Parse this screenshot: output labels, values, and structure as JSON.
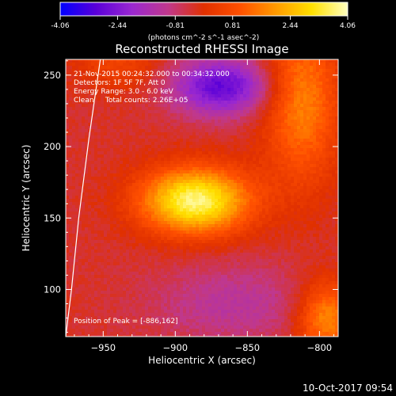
{
  "chart_data": {
    "type": "heatmap",
    "title": "Reconstructed RHESSI Image",
    "xlabel": "Heliocentric X (arcsec)",
    "ylabel": "Heliocentric Y (arcsec)",
    "xlim": [
      -976,
      -787
    ],
    "ylim": [
      67,
      261
    ],
    "xticks": [
      -950,
      -900,
      -850,
      -800
    ],
    "yticks": [
      100,
      150,
      200,
      250
    ],
    "colorbar": {
      "label": "(photons cm^-2 s^-1 asec^-2)",
      "range": [
        -4.06,
        4.06
      ],
      "ticks": [
        -4.06,
        -2.44,
        -0.81,
        0.81,
        2.44,
        4.06
      ],
      "colormap": [
        "#0000ff",
        "#5a00d8",
        "#9a28d0",
        "#c0388c",
        "#e03000",
        "#ff5000",
        "#ff9a00",
        "#ffe000",
        "#ffffc0"
      ]
    },
    "annotations": [
      "21-Nov-2015 00:24:32.000 to 00:34:32.000",
      "Detectors: 1F 5F 7F, Att 0",
      "Energy Range: 3.0 - 6.0 keV",
      "Clean     Total counts: 2.26E+05"
    ],
    "peak_label": "Position of Peak = [-886,162]",
    "peak": [
      -886,
      162
    ],
    "components": [
      {
        "kind": "source",
        "x": -886,
        "y": 162,
        "sx": 26,
        "sy": 16,
        "amplitude": 4.06
      },
      {
        "kind": "source",
        "x": -812,
        "y": 232,
        "sx": 18,
        "sy": 40,
        "amplitude": 2.0
      },
      {
        "kind": "source",
        "x": -795,
        "y": 80,
        "sx": 14,
        "sy": 18,
        "amplitude": 2.2
      },
      {
        "kind": "source",
        "x": -940,
        "y": 260,
        "sx": 20,
        "sy": 14,
        "amplitude": 0.9
      },
      {
        "kind": "negative",
        "x": -868,
        "y": 242,
        "sx": 24,
        "sy": 14,
        "amplitude": -2.6
      },
      {
        "kind": "negative",
        "x": -860,
        "y": 90,
        "sx": 40,
        "sy": 20,
        "amplitude": -0.9
      }
    ],
    "limb": [
      [
        -952,
        261
      ],
      [
        -960,
        205
      ],
      [
        -967,
        150
      ],
      [
        -972,
        100
      ],
      [
        -976,
        67
      ]
    ]
  },
  "footer": {
    "date_stamp": "10-Oct-2017 09:54"
  }
}
